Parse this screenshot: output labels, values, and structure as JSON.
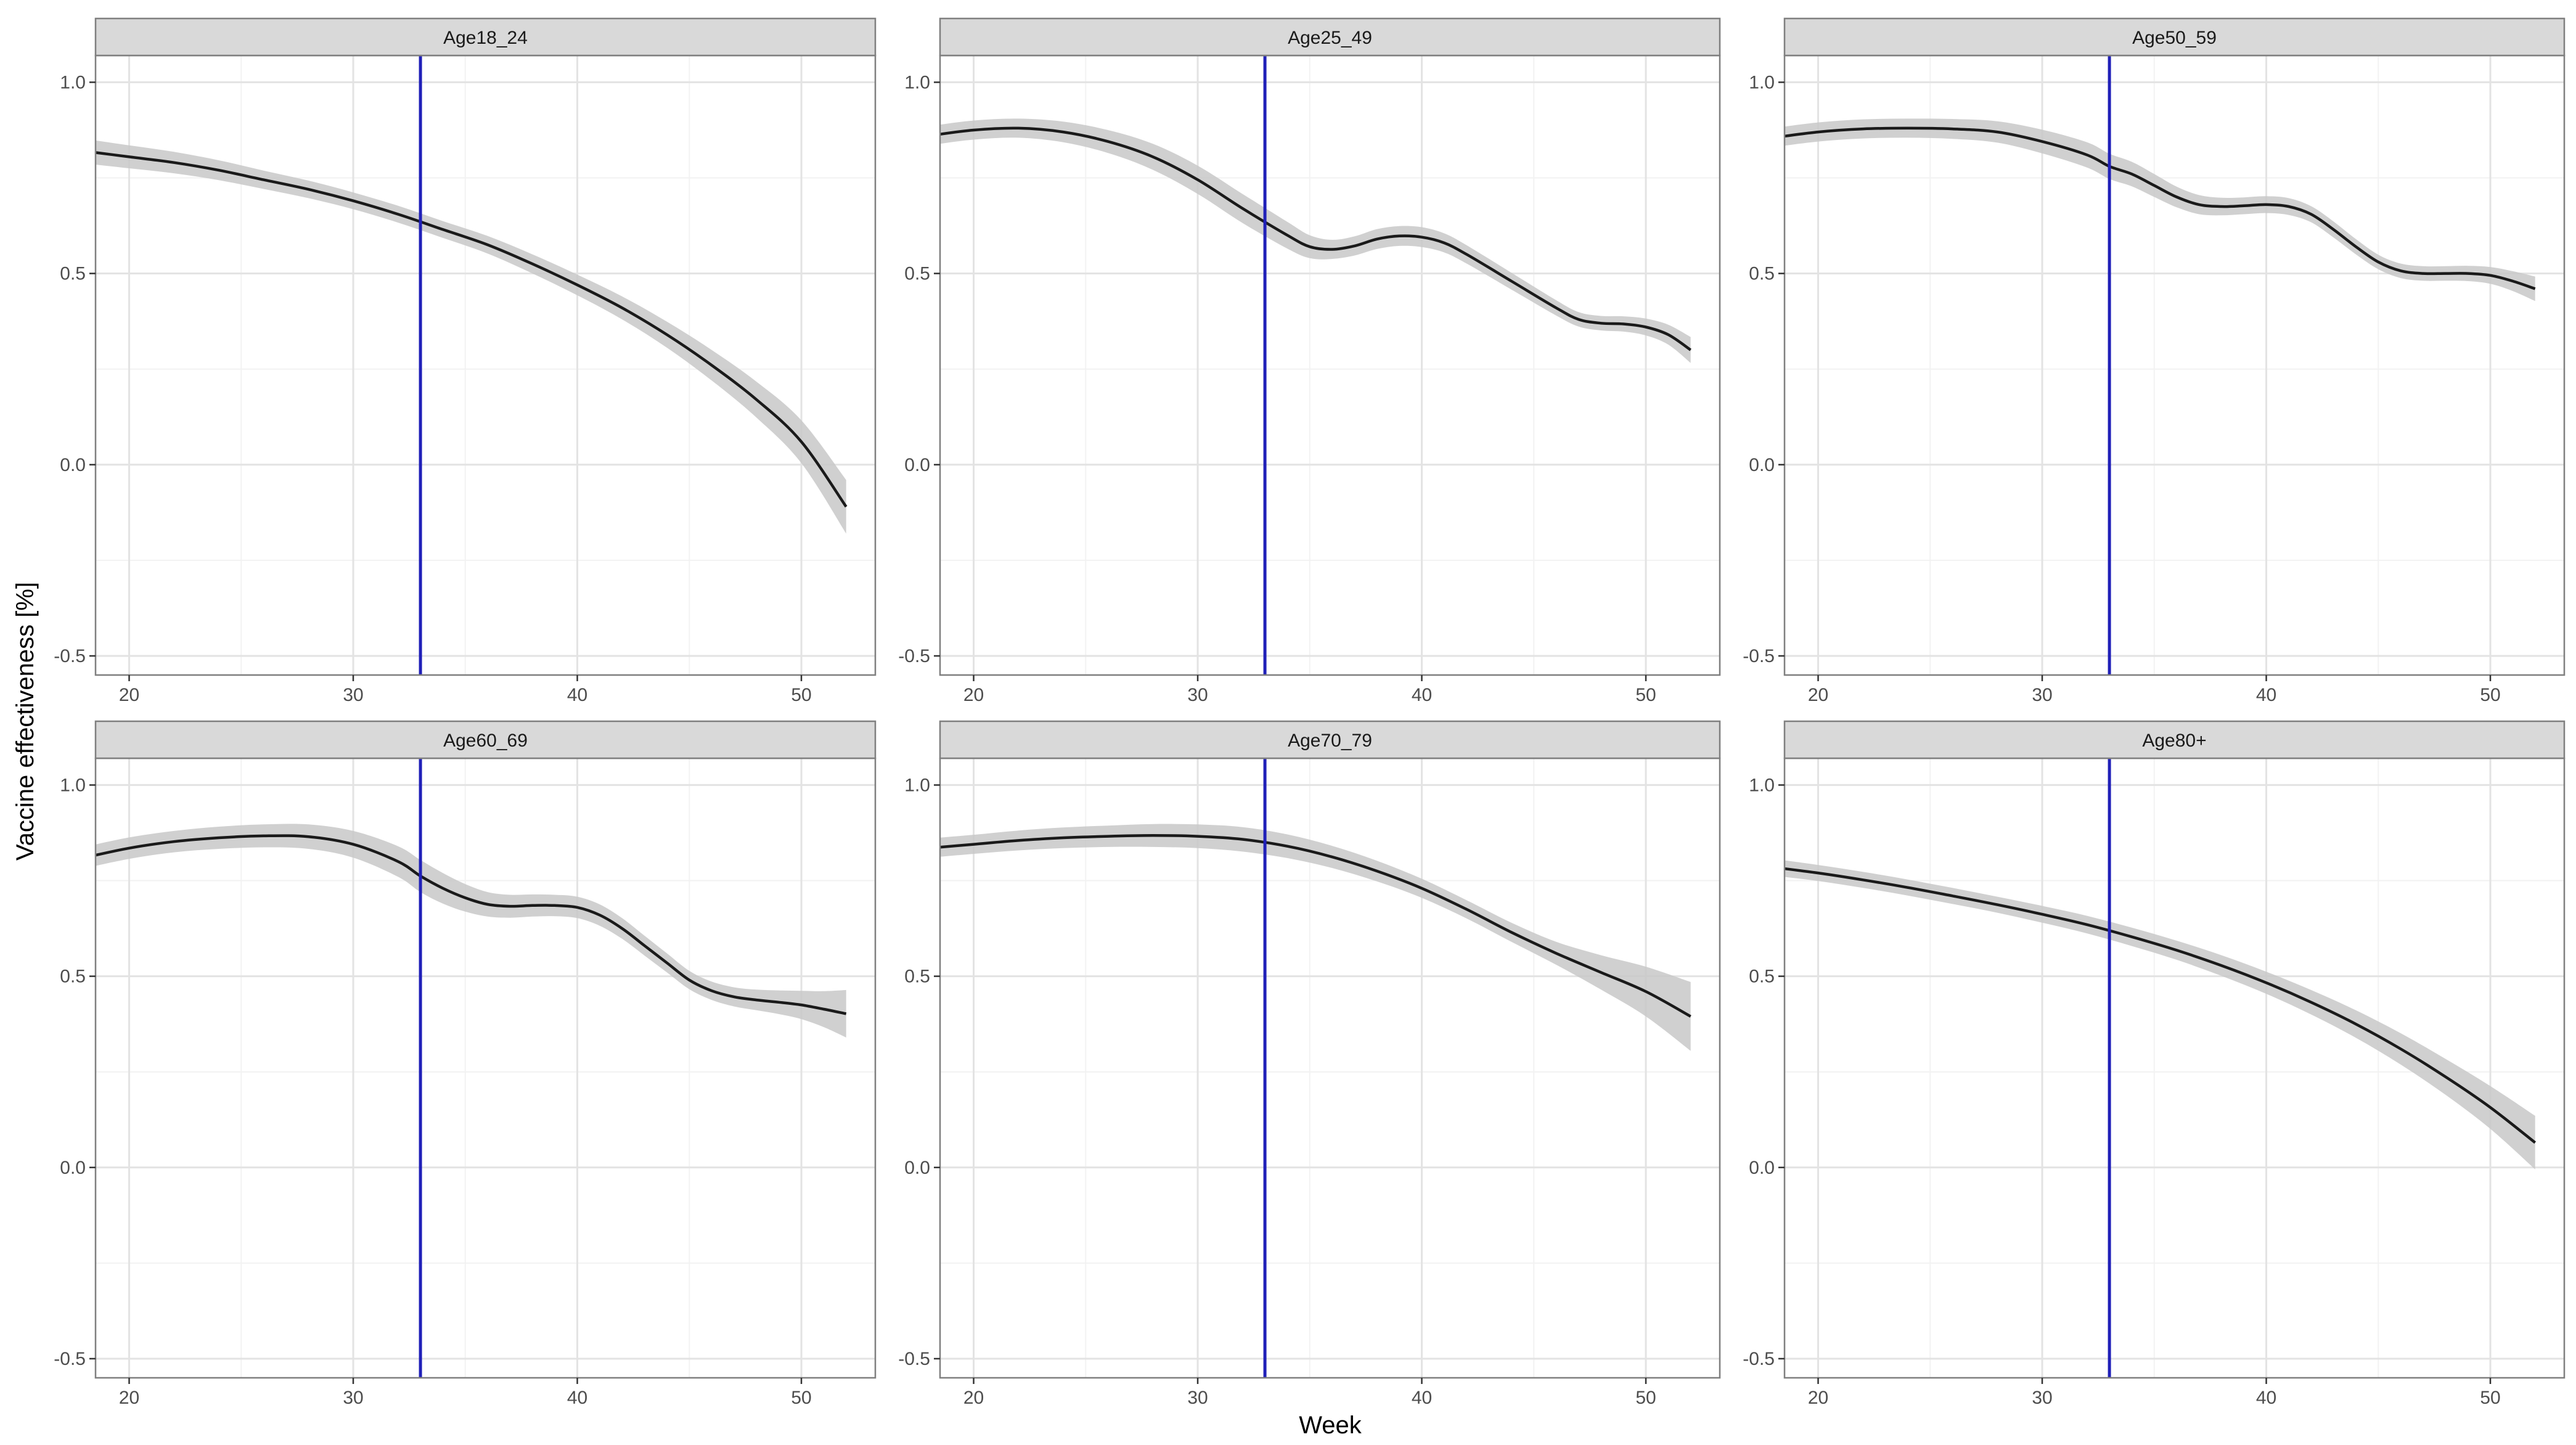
{
  "chart_data": {
    "type": "line",
    "xlabel": "Week",
    "ylabel": "Vaccine effectiveness [%]",
    "xlim": [
      18.5,
      53.3
    ],
    "ylim": [
      -0.55,
      1.07
    ],
    "x_ticks": [
      20,
      30,
      40,
      50
    ],
    "y_ticks": [
      -0.5,
      0.0,
      0.5,
      1.0
    ],
    "x_tick_labels": [
      "20",
      "30",
      "40",
      "50"
    ],
    "y_tick_labels": [
      "-0.5",
      "0.0",
      "0.5",
      "1.0"
    ],
    "grid": true,
    "reference_line_x": 33,
    "colors": {
      "line": "#1a1a1a",
      "ribbon": "#c8c8c8",
      "vline": "#2020b8",
      "strip_fill": "#d9d9d9",
      "grid_major": "#e3e3e3",
      "grid_minor": "#f2f2f2",
      "panel_border": "#7f7f7f"
    },
    "panels": [
      {
        "label": "Age18_24",
        "x": [
          18,
          20,
          22,
          24,
          26,
          28,
          30,
          32,
          34,
          36,
          38,
          40,
          42,
          44,
          46,
          48,
          50,
          52
        ],
        "y": [
          0.82,
          0.805,
          0.79,
          0.77,
          0.745,
          0.72,
          0.69,
          0.655,
          0.615,
          0.575,
          0.525,
          0.47,
          0.41,
          0.34,
          0.26,
          0.17,
          0.06,
          -0.11
        ],
        "band": [
          0.032,
          0.03,
          0.028,
          0.026,
          0.024,
          0.023,
          0.022,
          0.022,
          0.022,
          0.023,
          0.025,
          0.027,
          0.03,
          0.034,
          0.04,
          0.047,
          0.056,
          0.07
        ]
      },
      {
        "label": "Age25_49",
        "x": [
          18,
          20,
          22,
          24,
          26,
          28,
          30,
          32,
          34,
          35,
          36,
          37,
          38,
          39,
          40,
          41,
          42,
          44,
          46,
          47,
          48,
          49,
          50,
          51,
          52
        ],
        "y": [
          0.86,
          0.875,
          0.88,
          0.87,
          0.845,
          0.805,
          0.745,
          0.67,
          0.6,
          0.57,
          0.563,
          0.572,
          0.59,
          0.598,
          0.595,
          0.58,
          0.55,
          0.48,
          0.41,
          0.38,
          0.37,
          0.368,
          0.36,
          0.34,
          0.3
        ],
        "band": [
          0.025,
          0.025,
          0.025,
          0.027,
          0.03,
          0.034,
          0.037,
          0.038,
          0.035,
          0.03,
          0.025,
          0.025,
          0.026,
          0.026,
          0.026,
          0.025,
          0.024,
          0.022,
          0.02,
          0.019,
          0.019,
          0.02,
          0.022,
          0.026,
          0.034
        ]
      },
      {
        "label": "Age50_59",
        "x": [
          18,
          20,
          22,
          24,
          26,
          28,
          30,
          32,
          33,
          34,
          35,
          36,
          37,
          38,
          39,
          40,
          41,
          42,
          43,
          44,
          45,
          46,
          47,
          48,
          49,
          50,
          51,
          52
        ],
        "y": [
          0.855,
          0.87,
          0.878,
          0.88,
          0.878,
          0.87,
          0.845,
          0.81,
          0.78,
          0.76,
          0.73,
          0.7,
          0.68,
          0.675,
          0.677,
          0.68,
          0.675,
          0.655,
          0.615,
          0.57,
          0.53,
          0.507,
          0.5,
          0.5,
          0.5,
          0.495,
          0.48,
          0.46
        ],
        "band": [
          0.025,
          0.025,
          0.025,
          0.025,
          0.026,
          0.028,
          0.031,
          0.033,
          0.033,
          0.032,
          0.03,
          0.027,
          0.025,
          0.023,
          0.022,
          0.022,
          0.022,
          0.021,
          0.021,
          0.02,
          0.019,
          0.019,
          0.019,
          0.019,
          0.02,
          0.022,
          0.026,
          0.032
        ]
      },
      {
        "label": "Age60_69",
        "x": [
          18,
          20,
          22,
          24,
          26,
          28,
          30,
          32,
          33,
          34,
          35,
          36,
          37,
          38,
          39,
          40,
          41,
          42,
          43,
          44,
          45,
          46,
          47,
          48,
          49,
          50,
          51,
          52
        ],
        "y": [
          0.81,
          0.835,
          0.852,
          0.862,
          0.867,
          0.865,
          0.845,
          0.8,
          0.762,
          0.73,
          0.705,
          0.688,
          0.683,
          0.685,
          0.685,
          0.68,
          0.66,
          0.625,
          0.58,
          0.535,
          0.49,
          0.462,
          0.446,
          0.438,
          0.432,
          0.425,
          0.414,
          0.402
        ],
        "band": [
          0.028,
          0.028,
          0.028,
          0.029,
          0.03,
          0.032,
          0.035,
          0.04,
          0.042,
          0.04,
          0.036,
          0.032,
          0.03,
          0.029,
          0.028,
          0.028,
          0.028,
          0.027,
          0.026,
          0.025,
          0.024,
          0.024,
          0.025,
          0.027,
          0.031,
          0.037,
          0.047,
          0.062
        ]
      },
      {
        "label": "Age70_79",
        "x": [
          18,
          20,
          22,
          24,
          26,
          28,
          30,
          32,
          34,
          36,
          38,
          40,
          42,
          44,
          46,
          48,
          50,
          52
        ],
        "y": [
          0.835,
          0.845,
          0.855,
          0.862,
          0.866,
          0.868,
          0.866,
          0.858,
          0.84,
          0.812,
          0.775,
          0.73,
          0.675,
          0.615,
          0.56,
          0.51,
          0.46,
          0.395
        ],
        "band": [
          0.025,
          0.025,
          0.026,
          0.027,
          0.028,
          0.03,
          0.031,
          0.032,
          0.031,
          0.029,
          0.027,
          0.025,
          0.024,
          0.025,
          0.03,
          0.045,
          0.065,
          0.09
        ]
      },
      {
        "label": "Age80+",
        "x": [
          18,
          20,
          22,
          24,
          26,
          28,
          30,
          32,
          34,
          36,
          38,
          40,
          42,
          44,
          46,
          48,
          50,
          52
        ],
        "y": [
          0.785,
          0.77,
          0.752,
          0.732,
          0.71,
          0.687,
          0.662,
          0.635,
          0.603,
          0.568,
          0.528,
          0.483,
          0.432,
          0.375,
          0.31,
          0.237,
          0.157,
          0.065
        ],
        "band": [
          0.022,
          0.021,
          0.021,
          0.021,
          0.021,
          0.021,
          0.022,
          0.023,
          0.024,
          0.025,
          0.027,
          0.029,
          0.032,
          0.036,
          0.041,
          0.047,
          0.056,
          0.07
        ]
      }
    ]
  }
}
